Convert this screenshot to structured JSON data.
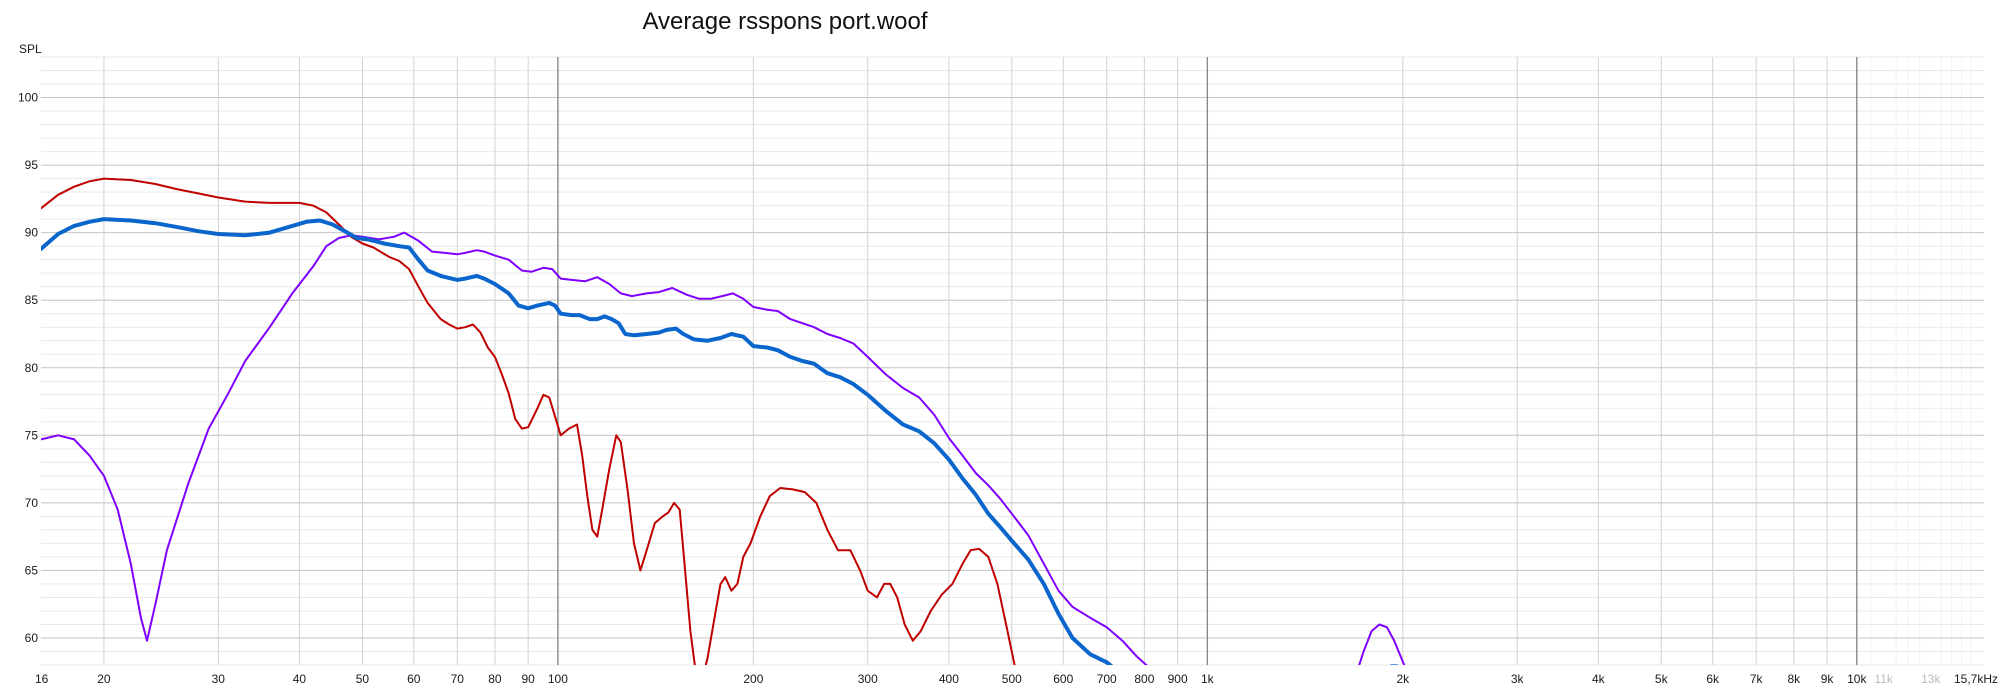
{
  "chart_data": {
    "type": "line",
    "title": "Average rsspons port.woof",
    "ylabel": "SPL",
    "xlabel": "",
    "x_scale": "log",
    "xlim": [
      16,
      15700
    ],
    "ylim": [
      58,
      103
    ],
    "grid": true,
    "x_ticks": [
      {
        "v": 16,
        "l": "16"
      },
      {
        "v": 20,
        "l": "20"
      },
      {
        "v": 30,
        "l": "30"
      },
      {
        "v": 40,
        "l": "40"
      },
      {
        "v": 50,
        "l": "50"
      },
      {
        "v": 60,
        "l": "60"
      },
      {
        "v": 70,
        "l": "70"
      },
      {
        "v": 80,
        "l": "80"
      },
      {
        "v": 90,
        "l": "90"
      },
      {
        "v": 100,
        "l": "100"
      },
      {
        "v": 200,
        "l": "200"
      },
      {
        "v": 300,
        "l": "300"
      },
      {
        "v": 400,
        "l": "400"
      },
      {
        "v": 500,
        "l": "500"
      },
      {
        "v": 600,
        "l": "600"
      },
      {
        "v": 700,
        "l": "700"
      },
      {
        "v": 800,
        "l": "800"
      },
      {
        "v": 900,
        "l": "900"
      },
      {
        "v": 1000,
        "l": "1k"
      },
      {
        "v": 2000,
        "l": "2k"
      },
      {
        "v": 3000,
        "l": "3k"
      },
      {
        "v": 4000,
        "l": "4k"
      },
      {
        "v": 5000,
        "l": "5k"
      },
      {
        "v": 6000,
        "l": "6k"
      },
      {
        "v": 7000,
        "l": "7k"
      },
      {
        "v": 8000,
        "l": "8k"
      },
      {
        "v": 9000,
        "l": "9k"
      },
      {
        "v": 10000,
        "l": "10k"
      },
      {
        "v": 11000,
        "l": "11k",
        "faded": true
      },
      {
        "v": 13000,
        "l": "13k",
        "faded": true
      },
      {
        "v": 15700,
        "l": "15,7kHz"
      }
    ],
    "y_ticks": [
      60,
      65,
      70,
      75,
      80,
      85,
      90,
      95,
      100
    ],
    "series": [
      {
        "color": "#c00000",
        "width": 2,
        "points": [
          [
            16,
            91.8
          ],
          [
            17,
            92.8
          ],
          [
            18,
            93.4
          ],
          [
            19,
            93.8
          ],
          [
            20,
            94.0
          ],
          [
            22,
            93.9
          ],
          [
            24,
            93.6
          ],
          [
            26,
            93.2
          ],
          [
            28,
            92.9
          ],
          [
            30,
            92.6
          ],
          [
            33,
            92.3
          ],
          [
            36,
            92.2
          ],
          [
            40,
            92.2
          ],
          [
            42,
            92.0
          ],
          [
            44,
            91.5
          ],
          [
            46,
            90.6
          ],
          [
            48,
            89.7
          ],
          [
            50,
            89.2
          ],
          [
            52,
            88.9
          ],
          [
            55,
            88.2
          ],
          [
            57,
            87.9
          ],
          [
            59,
            87.3
          ],
          [
            61,
            86.0
          ],
          [
            63,
            84.8
          ],
          [
            66,
            83.6
          ],
          [
            68,
            83.2
          ],
          [
            70,
            82.9
          ],
          [
            72,
            83.0
          ],
          [
            74,
            83.2
          ],
          [
            76,
            82.6
          ],
          [
            78,
            81.5
          ],
          [
            80,
            80.8
          ],
          [
            82,
            79.5
          ],
          [
            84,
            78.1
          ],
          [
            86,
            76.2
          ],
          [
            88,
            75.5
          ],
          [
            90,
            75.6
          ],
          [
            93,
            77.0
          ],
          [
            95,
            78.0
          ],
          [
            97,
            77.8
          ],
          [
            99,
            76.4
          ],
          [
            101,
            75.0
          ],
          [
            104,
            75.5
          ],
          [
            107,
            75.8
          ],
          [
            109,
            73.5
          ],
          [
            111,
            70.5
          ],
          [
            113,
            68.0
          ],
          [
            115,
            67.5
          ],
          [
            117,
            69.5
          ],
          [
            120,
            72.5
          ],
          [
            123,
            75.0
          ],
          [
            125,
            74.5
          ],
          [
            128,
            71.0
          ],
          [
            131,
            67.0
          ],
          [
            134,
            65.0
          ],
          [
            137,
            66.5
          ],
          [
            141,
            68.5
          ],
          [
            145,
            69.0
          ],
          [
            148,
            69.3
          ],
          [
            151,
            70.0
          ],
          [
            154,
            69.5
          ],
          [
            157,
            65.0
          ],
          [
            160,
            60.5
          ],
          [
            163,
            57.5
          ],
          [
            166,
            56.5
          ],
          [
            170,
            58.5
          ],
          [
            175,
            62.0
          ],
          [
            178,
            64.0
          ],
          [
            181,
            64.5
          ],
          [
            185,
            63.5
          ],
          [
            189,
            64.0
          ],
          [
            193,
            66.0
          ],
          [
            198,
            67.0
          ],
          [
            205,
            69.0
          ],
          [
            212,
            70.5
          ],
          [
            220,
            71.1
          ],
          [
            230,
            71.0
          ],
          [
            240,
            70.8
          ],
          [
            250,
            70.0
          ],
          [
            260,
            68.0
          ],
          [
            270,
            66.5
          ],
          [
            282,
            66.5
          ],
          [
            292,
            65.0
          ],
          [
            300,
            63.5
          ],
          [
            310,
            63.0
          ],
          [
            318,
            64.0
          ],
          [
            325,
            64.0
          ],
          [
            333,
            63.0
          ],
          [
            342,
            61.0
          ],
          [
            352,
            59.8
          ],
          [
            362,
            60.5
          ],
          [
            375,
            62.0
          ],
          [
            390,
            63.2
          ],
          [
            405,
            64.0
          ],
          [
            420,
            65.5
          ],
          [
            432,
            66.5
          ],
          [
            445,
            66.6
          ],
          [
            460,
            66.0
          ],
          [
            475,
            64.0
          ],
          [
            490,
            61.0
          ],
          [
            505,
            58.0
          ],
          [
            515,
            56.0
          ]
        ]
      },
      {
        "color": "#7f00ff",
        "width": 2,
        "points": [
          [
            16,
            74.7
          ],
          [
            17,
            75.0
          ],
          [
            18,
            74.7
          ],
          [
            19,
            73.5
          ],
          [
            20,
            72.0
          ],
          [
            21,
            69.5
          ],
          [
            22,
            65.5
          ],
          [
            22.8,
            61.5
          ],
          [
            23.3,
            59.8
          ],
          [
            24,
            62.5
          ],
          [
            25,
            66.5
          ],
          [
            27,
            71.5
          ],
          [
            29,
            75.5
          ],
          [
            31,
            78.0
          ],
          [
            33,
            80.5
          ],
          [
            36,
            83.0
          ],
          [
            39,
            85.5
          ],
          [
            42,
            87.5
          ],
          [
            44,
            89.0
          ],
          [
            46,
            89.6
          ],
          [
            48,
            89.8
          ],
          [
            50,
            89.7
          ],
          [
            53,
            89.5
          ],
          [
            56,
            89.7
          ],
          [
            58,
            90.0
          ],
          [
            61,
            89.4
          ],
          [
            64,
            88.6
          ],
          [
            67,
            88.5
          ],
          [
            70,
            88.4
          ],
          [
            72,
            88.5
          ],
          [
            75,
            88.7
          ],
          [
            77,
            88.6
          ],
          [
            80,
            88.3
          ],
          [
            84,
            88.0
          ],
          [
            88,
            87.2
          ],
          [
            91,
            87.1
          ],
          [
            95,
            87.4
          ],
          [
            98,
            87.3
          ],
          [
            101,
            86.6
          ],
          [
            105,
            86.5
          ],
          [
            110,
            86.4
          ],
          [
            115,
            86.7
          ],
          [
            120,
            86.2
          ],
          [
            125,
            85.5
          ],
          [
            130,
            85.3
          ],
          [
            137,
            85.5
          ],
          [
            143,
            85.6
          ],
          [
            150,
            85.9
          ],
          [
            158,
            85.4
          ],
          [
            165,
            85.1
          ],
          [
            172,
            85.1
          ],
          [
            179,
            85.3
          ],
          [
            186,
            85.5
          ],
          [
            193,
            85.1
          ],
          [
            200,
            84.5
          ],
          [
            210,
            84.3
          ],
          [
            218,
            84.2
          ],
          [
            228,
            83.6
          ],
          [
            238,
            83.3
          ],
          [
            248,
            83.0
          ],
          [
            260,
            82.5
          ],
          [
            272,
            82.2
          ],
          [
            285,
            81.8
          ],
          [
            300,
            80.8
          ],
          [
            320,
            79.5
          ],
          [
            340,
            78.5
          ],
          [
            360,
            77.8
          ],
          [
            380,
            76.5
          ],
          [
            400,
            74.8
          ],
          [
            420,
            73.5
          ],
          [
            440,
            72.2
          ],
          [
            460,
            71.3
          ],
          [
            480,
            70.3
          ],
          [
            500,
            69.2
          ],
          [
            530,
            67.6
          ],
          [
            560,
            65.5
          ],
          [
            590,
            63.5
          ],
          [
            620,
            62.3
          ],
          [
            660,
            61.5
          ],
          [
            700,
            60.8
          ],
          [
            740,
            59.8
          ],
          [
            780,
            58.6
          ],
          [
            810,
            57.9
          ],
          [
            830,
            57.5
          ],
          [
            1700,
            57.5
          ],
          [
            1740,
            59.0
          ],
          [
            1790,
            60.5
          ],
          [
            1840,
            61.0
          ],
          [
            1890,
            60.8
          ],
          [
            1940,
            59.8
          ],
          [
            1990,
            58.5
          ],
          [
            2030,
            57.5
          ]
        ]
      },
      {
        "color": "#0a66cc",
        "width": 4,
        "points": [
          [
            16,
            88.8
          ],
          [
            17,
            89.9
          ],
          [
            18,
            90.5
          ],
          [
            19,
            90.8
          ],
          [
            20,
            91.0
          ],
          [
            22,
            90.9
          ],
          [
            24,
            90.7
          ],
          [
            26,
            90.4
          ],
          [
            28,
            90.1
          ],
          [
            30,
            89.9
          ],
          [
            33,
            89.8
          ],
          [
            36,
            90.0
          ],
          [
            39,
            90.5
          ],
          [
            41,
            90.8
          ],
          [
            43,
            90.9
          ],
          [
            45,
            90.6
          ],
          [
            47,
            90.1
          ],
          [
            49,
            89.6
          ],
          [
            51,
            89.5
          ],
          [
            54,
            89.2
          ],
          [
            57,
            89.0
          ],
          [
            59,
            88.9
          ],
          [
            61,
            88.0
          ],
          [
            63,
            87.2
          ],
          [
            66,
            86.8
          ],
          [
            70,
            86.5
          ],
          [
            72,
            86.6
          ],
          [
            75,
            86.8
          ],
          [
            77,
            86.6
          ],
          [
            80,
            86.2
          ],
          [
            84,
            85.5
          ],
          [
            87,
            84.6
          ],
          [
            90,
            84.4
          ],
          [
            93,
            84.6
          ],
          [
            97,
            84.8
          ],
          [
            99,
            84.6
          ],
          [
            101,
            84.0
          ],
          [
            105,
            83.9
          ],
          [
            108,
            83.9
          ],
          [
            112,
            83.6
          ],
          [
            115,
            83.6
          ],
          [
            118,
            83.8
          ],
          [
            121,
            83.6
          ],
          [
            124,
            83.3
          ],
          [
            127,
            82.5
          ],
          [
            131,
            82.4
          ],
          [
            137,
            82.5
          ],
          [
            143,
            82.6
          ],
          [
            147,
            82.8
          ],
          [
            152,
            82.9
          ],
          [
            156,
            82.5
          ],
          [
            162,
            82.1
          ],
          [
            170,
            82.0
          ],
          [
            178,
            82.2
          ],
          [
            185,
            82.5
          ],
          [
            193,
            82.3
          ],
          [
            200,
            81.6
          ],
          [
            210,
            81.5
          ],
          [
            218,
            81.3
          ],
          [
            228,
            80.8
          ],
          [
            238,
            80.5
          ],
          [
            248,
            80.3
          ],
          [
            260,
            79.6
          ],
          [
            272,
            79.3
          ],
          [
            285,
            78.8
          ],
          [
            300,
            78.0
          ],
          [
            320,
            76.8
          ],
          [
            340,
            75.8
          ],
          [
            360,
            75.3
          ],
          [
            380,
            74.4
          ],
          [
            400,
            73.2
          ],
          [
            420,
            71.8
          ],
          [
            440,
            70.6
          ],
          [
            460,
            69.2
          ],
          [
            480,
            68.2
          ],
          [
            500,
            67.2
          ],
          [
            530,
            65.8
          ],
          [
            560,
            64.0
          ],
          [
            590,
            61.8
          ],
          [
            620,
            60.0
          ],
          [
            660,
            58.8
          ],
          [
            700,
            58.2
          ],
          [
            730,
            57.5
          ],
          [
            1880,
            57.5
          ],
          [
            1920,
            57.9
          ],
          [
            1960,
            57.9
          ],
          [
            2000,
            57.5
          ]
        ]
      }
    ]
  }
}
